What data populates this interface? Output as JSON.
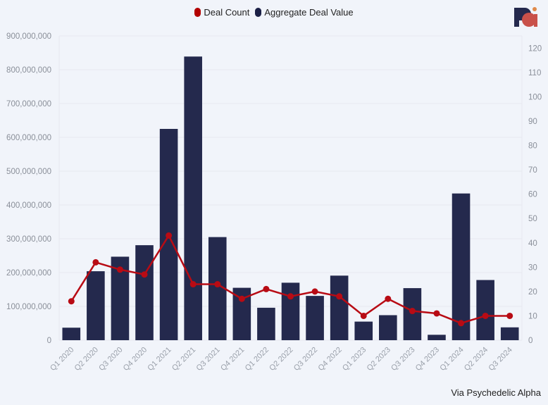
{
  "legend": [
    {
      "label": "Deal Count",
      "color": "#b30000"
    },
    {
      "label": "Aggregate Deal Value",
      "color": "#1b2046"
    }
  ],
  "source_text": "Via Psychedelic Alpha",
  "logo": {
    "name": "psychedelic-alpha-logo",
    "text": "PA"
  },
  "colors": {
    "bar": "#24294d",
    "line": "#b80b14",
    "grid": "#e6e9f0",
    "background": "#f1f4fa"
  },
  "chart_data": {
    "type": "bar",
    "title": "",
    "categories": [
      "Q1 2020",
      "Q2 2020",
      "Q3 2020",
      "Q4 2020",
      "Q1 2021",
      "Q2 2021",
      "Q3 2021",
      "Q4 2021",
      "Q1 2022",
      "Q2 2022",
      "Q3 2022",
      "Q4 2022",
      "Q1 2023",
      "Q2 2023",
      "Q3 2023",
      "Q4 2023",
      "Q1 2024",
      "Q2 2024",
      "Q3 2024"
    ],
    "left_ticks": [
      "0",
      "100,000,000",
      "200,000,000",
      "300,000,000",
      "400,000,000",
      "500,000,000",
      "600,000,000",
      "700,000,000",
      "800,000,000",
      "900,000,000"
    ],
    "right_ticks": [
      "0",
      "10",
      "20",
      "30",
      "40",
      "50",
      "60",
      "70",
      "80",
      "90",
      "100",
      "110",
      "120"
    ],
    "y_left_lim": [
      0,
      900000000
    ],
    "y_right_lim": [
      0,
      125
    ],
    "grid": true,
    "legend_position": "top-center",
    "series": [
      {
        "name": "Aggregate Deal Value",
        "type": "bar",
        "axis": "left",
        "values": [
          37000000,
          204000000,
          247000000,
          281000000,
          625000000,
          839000000,
          305000000,
          155000000,
          96000000,
          170000000,
          131000000,
          191000000,
          55000000,
          74000000,
          154000000,
          16000000,
          434000000,
          178000000,
          38000000
        ]
      },
      {
        "name": "Deal Count",
        "type": "line",
        "axis": "right",
        "values": [
          16,
          32,
          29,
          27,
          43,
          23,
          23,
          17,
          21,
          18,
          20,
          18,
          10,
          17,
          12,
          11,
          7,
          10,
          10
        ]
      }
    ]
  }
}
